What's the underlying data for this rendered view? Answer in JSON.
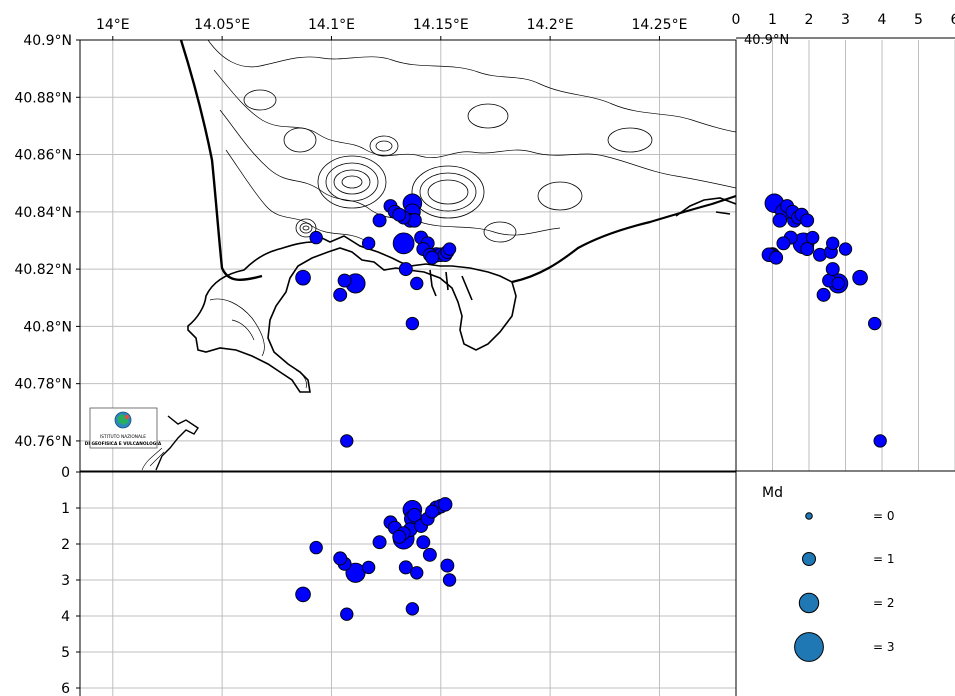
{
  "map_panel": {
    "lon_ticks": [
      {
        "value": 14.0,
        "label": "14°E"
      },
      {
        "value": 14.05,
        "label": "14.05°E"
      },
      {
        "value": 14.1,
        "label": "14.1°E"
      },
      {
        "value": 14.15,
        "label": "14.15°E"
      },
      {
        "value": 14.2,
        "label": "14.2°E"
      },
      {
        "value": 14.25,
        "label": "14.25°E"
      }
    ],
    "lat_ticks": [
      {
        "value": 40.9,
        "label": "40.9°N"
      },
      {
        "value": 40.88,
        "label": "40.88°N"
      },
      {
        "value": 40.86,
        "label": "40.86°N"
      },
      {
        "value": 40.84,
        "label": "40.84°N"
      },
      {
        "value": 40.82,
        "label": "40.82°N"
      },
      {
        "value": 40.8,
        "label": "40.8°N"
      },
      {
        "value": 40.78,
        "label": "40.78°N"
      },
      {
        "value": 40.76,
        "label": "40.76°N"
      }
    ],
    "lon_range": [
      13.985,
      14.285
    ],
    "lat_range": [
      40.7495,
      40.9
    ],
    "logo": {
      "line1": "ISTITUTO NAZIONALE",
      "line2": "DI GEOFISICA E VULCANOLOGIA"
    }
  },
  "depth_panel": {
    "depth_ticks": [
      "0",
      "1",
      "2",
      "3",
      "4",
      "5",
      "6"
    ],
    "depth_range_km": [
      0,
      6
    ]
  },
  "side_panel": {
    "depth_ticks": [
      "0",
      "1",
      "2",
      "3",
      "4",
      "5",
      "6"
    ],
    "depth_range_km": [
      0,
      6
    ],
    "clipped_tick_label": "40.9°N"
  },
  "legend": {
    "title": "Md",
    "entries": [
      {
        "md": 0,
        "label": "= 0"
      },
      {
        "md": 1,
        "label": "= 1"
      },
      {
        "md": 2,
        "label": "= 2"
      },
      {
        "md": 3,
        "label": "= 3"
      }
    ]
  },
  "colors": {
    "event_fill": "#0000ff",
    "event_edge": "#000000",
    "legend_fill": "#1f77b4",
    "grid": "#bfbfbf",
    "contour": "#000000"
  },
  "chart_data": {
    "type": "scatter",
    "x_label": "",
    "y_label": "",
    "events": [
      {
        "lon": 14.133,
        "lat": 40.829,
        "depth": 1.85,
        "md": 2.3
      },
      {
        "lon": 14.137,
        "lat": 40.843,
        "depth": 1.05,
        "md": 1.9
      },
      {
        "lon": 14.137,
        "lat": 40.84,
        "depth": 1.3,
        "md": 1.4
      },
      {
        "lon": 14.136,
        "lat": 40.837,
        "depth": 1.6,
        "md": 1.0
      },
      {
        "lon": 14.138,
        "lat": 40.837,
        "depth": 1.2,
        "md": 1.0
      },
      {
        "lon": 14.127,
        "lat": 40.842,
        "depth": 1.4,
        "md": 0.9
      },
      {
        "lon": 14.129,
        "lat": 40.84,
        "depth": 1.55,
        "md": 0.9
      },
      {
        "lon": 14.133,
        "lat": 40.838,
        "depth": 1.7,
        "md": 0.9
      },
      {
        "lon": 14.131,
        "lat": 40.839,
        "depth": 1.8,
        "md": 0.9
      },
      {
        "lon": 14.141,
        "lat": 40.831,
        "depth": 1.5,
        "md": 0.9
      },
      {
        "lon": 14.144,
        "lat": 40.829,
        "depth": 1.3,
        "md": 0.9
      },
      {
        "lon": 14.142,
        "lat": 40.827,
        "depth": 1.95,
        "md": 0.9
      },
      {
        "lon": 14.145,
        "lat": 40.825,
        "depth": 2.3,
        "md": 0.9
      },
      {
        "lon": 14.148,
        "lat": 40.825,
        "depth": 1.0,
        "md": 1.1
      },
      {
        "lon": 14.15,
        "lat": 40.825,
        "depth": 0.95,
        "md": 1.0
      },
      {
        "lon": 14.152,
        "lat": 40.825,
        "depth": 0.9,
        "md": 1.0
      },
      {
        "lon": 14.146,
        "lat": 40.824,
        "depth": 1.1,
        "md": 0.9
      },
      {
        "lon": 14.122,
        "lat": 40.837,
        "depth": 1.95,
        "md": 0.9
      },
      {
        "lon": 14.111,
        "lat": 40.815,
        "depth": 2.8,
        "md": 2.0
      },
      {
        "lon": 14.106,
        "lat": 40.816,
        "depth": 2.55,
        "md": 0.9
      },
      {
        "lon": 14.104,
        "lat": 40.811,
        "depth": 2.4,
        "md": 0.9
      },
      {
        "lon": 14.087,
        "lat": 40.817,
        "depth": 3.4,
        "md": 1.2
      },
      {
        "lon": 14.093,
        "lat": 40.831,
        "depth": 2.1,
        "md": 0.8
      },
      {
        "lon": 14.134,
        "lat": 40.82,
        "depth": 2.65,
        "md": 0.9
      },
      {
        "lon": 14.139,
        "lat": 40.815,
        "depth": 2.8,
        "md": 0.8
      },
      {
        "lon": 14.137,
        "lat": 40.801,
        "depth": 3.8,
        "md": 0.8
      },
      {
        "lon": 14.107,
        "lat": 40.76,
        "depth": 3.95,
        "md": 0.8
      },
      {
        "lon": 14.153,
        "lat": 40.826,
        "depth": 2.6,
        "md": 0.9
      },
      {
        "lon": 14.117,
        "lat": 40.829,
        "depth": 2.65,
        "md": 0.8
      },
      {
        "lon": 14.154,
        "lat": 40.827,
        "depth": 3.0,
        "md": 0.8
      }
    ]
  }
}
